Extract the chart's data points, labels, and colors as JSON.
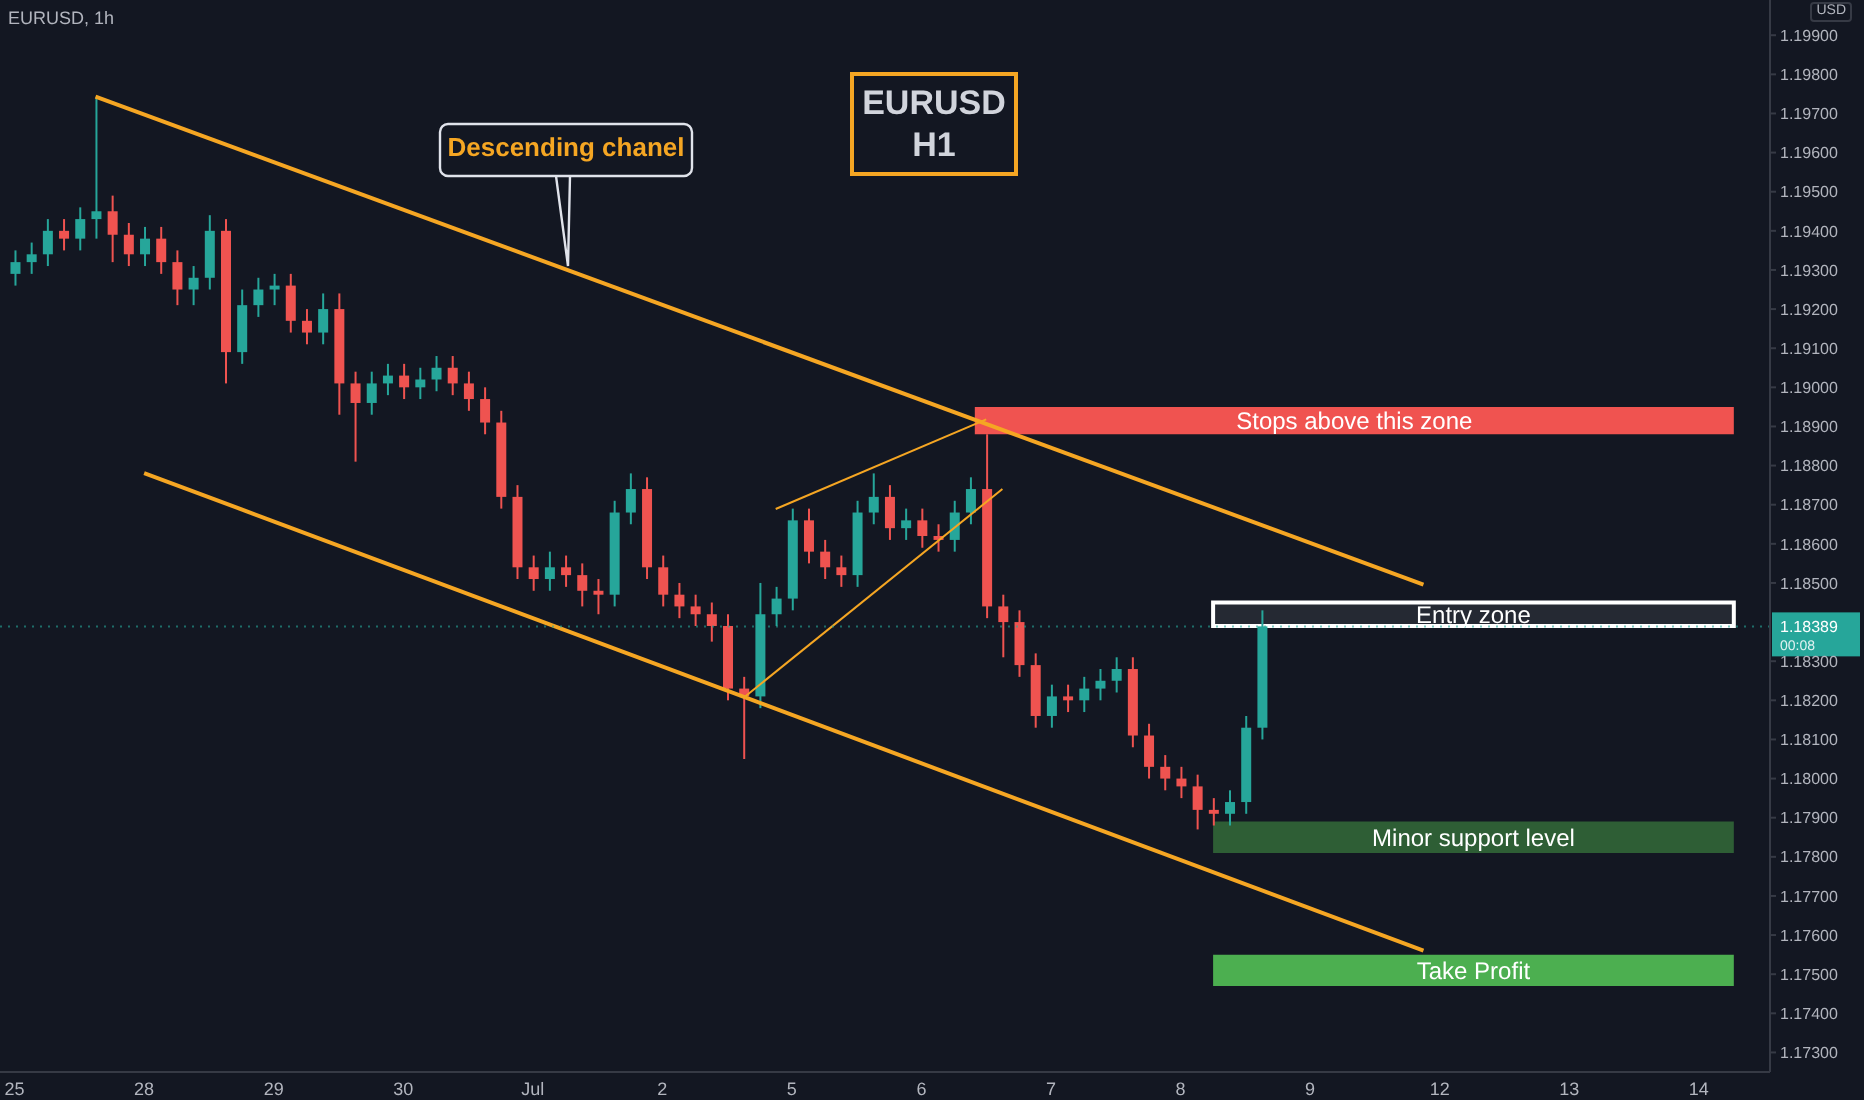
{
  "chart_data": {
    "type": "candlestick",
    "title": "EURUSD, 1h",
    "ylabel": "USD",
    "categories": [
      "25",
      null,
      null,
      null,
      null,
      null,
      null,
      null,
      "28",
      null,
      null,
      null,
      null,
      null,
      null,
      null,
      "29",
      null,
      null,
      null,
      null,
      null,
      null,
      null,
      "30",
      null,
      null,
      null,
      null,
      null,
      null,
      null,
      "Jul",
      null,
      null,
      null,
      null,
      null,
      null,
      null,
      "2",
      null,
      null,
      null,
      null,
      null,
      null,
      null,
      "5",
      null,
      null,
      null,
      null,
      null,
      null,
      null,
      "6",
      null,
      null,
      null,
      null,
      null,
      null,
      null,
      "7",
      null,
      null,
      null,
      null,
      null,
      null,
      null,
      "8",
      null,
      null,
      null,
      null,
      null,
      null,
      null,
      "9",
      null,
      null,
      null,
      null,
      null,
      null,
      null,
      "12",
      null,
      null,
      null,
      null,
      null,
      null,
      null,
      "13",
      null,
      null,
      null,
      null,
      null,
      null,
      null,
      "14",
      null,
      null,
      null,
      null
    ],
    "ylim": [
      1.1725,
      1.1999
    ],
    "yticks": [
      {
        "value": 1.199,
        "label": "1.19900"
      },
      {
        "value": 1.198,
        "label": "1.19800"
      },
      {
        "value": 1.197,
        "label": "1.19700"
      },
      {
        "value": 1.196,
        "label": "1.19600"
      },
      {
        "value": 1.195,
        "label": "1.19500"
      },
      {
        "value": 1.194,
        "label": "1.19400"
      },
      {
        "value": 1.193,
        "label": "1.19300"
      },
      {
        "value": 1.192,
        "label": "1.19200"
      },
      {
        "value": 1.191,
        "label": "1.19100"
      },
      {
        "value": 1.19,
        "label": "1.19000"
      },
      {
        "value": 1.189,
        "label": "1.18900"
      },
      {
        "value": 1.188,
        "label": "1.18800"
      },
      {
        "value": 1.187,
        "label": "1.18700"
      },
      {
        "value": 1.186,
        "label": "1.18600"
      },
      {
        "value": 1.185,
        "label": "1.18500"
      },
      {
        "value": 1.183,
        "label": "1.18300"
      },
      {
        "value": 1.182,
        "label": "1.18200"
      },
      {
        "value": 1.181,
        "label": "1.18100"
      },
      {
        "value": 1.18,
        "label": "1.18000"
      },
      {
        "value": 1.179,
        "label": "1.17900"
      },
      {
        "value": 1.178,
        "label": "1.17800"
      },
      {
        "value": 1.177,
        "label": "1.17700"
      },
      {
        "value": 1.176,
        "label": "1.17600"
      },
      {
        "value": 1.175,
        "label": "1.17500"
      },
      {
        "value": 1.174,
        "label": "1.17400"
      },
      {
        "value": 1.173,
        "label": "1.17300"
      }
    ],
    "series": [
      {
        "colors": [
          "#26a69a",
          "#26a69a",
          "#26a69a",
          "#ef5350",
          "#26a69a",
          "#26a69a",
          "#ef5350",
          "#ef5350",
          "#26a69a",
          "#ef5350",
          "#ef5350",
          "#26a69a",
          "#26a69a",
          "#ef5350",
          "#26a69a",
          "#26a69a",
          "#26a69a",
          "#ef5350",
          "#ef5350",
          "#26a69a",
          "#ef5350",
          "#ef5350",
          "#26a69a",
          "#26a69a",
          "#ef5350",
          "#26a69a",
          "#26a69a",
          "#ef5350",
          "#ef5350",
          "#ef5350",
          "#ef5350",
          "#ef5350",
          "#ef5350",
          "#26a69a",
          "#ef5350",
          "#ef5350",
          "#ef5350",
          "#26a69a",
          "#26a69a",
          "#ef5350",
          "#ef5350",
          "#ef5350",
          "#ef5350",
          "#ef5350",
          "#ef5350",
          "#ef5350",
          "#26a69a",
          "#26a69a",
          "#26a69a",
          "#ef5350",
          "#ef5350",
          "#ef5350",
          "#26a69a",
          "#26a69a",
          "#ef5350",
          "#26a69a",
          "#ef5350",
          "#ef5350",
          "#26a69a",
          "#26a69a",
          "#ef5350",
          "#ef5350",
          "#ef5350",
          "#ef5350",
          "#26a69a",
          "#ef5350",
          "#26a69a",
          "#26a69a",
          "#26a69a",
          "#ef5350",
          "#ef5350",
          "#ef5350",
          "#ef5350",
          "#ef5350",
          "#ef5350",
          "#26a69a",
          "#26a69a",
          "#26a69a",
          null,
          null,
          null,
          null,
          null,
          null,
          null,
          null,
          null,
          null,
          null,
          null,
          null,
          null,
          null,
          null,
          null,
          null,
          null,
          null,
          null,
          null,
          null,
          null,
          null,
          null,
          null,
          null,
          null,
          null,
          null
        ],
        "ohlc": [
          [
            1.1929,
            1.1935,
            1.1926,
            1.1932
          ],
          [
            1.1932,
            1.1937,
            1.1929,
            1.1934
          ],
          [
            1.1934,
            1.1943,
            1.1931,
            1.194
          ],
          [
            1.194,
            1.1943,
            1.1935,
            1.1938
          ],
          [
            1.1938,
            1.1946,
            1.1935,
            1.1943
          ],
          [
            1.1943,
            1.1974,
            1.1938,
            1.1945
          ],
          [
            1.1945,
            1.1949,
            1.1932,
            1.1939
          ],
          [
            1.1939,
            1.1942,
            1.1931,
            1.1934
          ],
          [
            1.1934,
            1.1941,
            1.1931,
            1.1938
          ],
          [
            1.1938,
            1.1941,
            1.1929,
            1.1932
          ],
          [
            1.1932,
            1.1935,
            1.1921,
            1.1925
          ],
          [
            1.1925,
            1.1931,
            1.1921,
            1.1928
          ],
          [
            1.1928,
            1.1944,
            1.1925,
            1.194
          ],
          [
            1.194,
            1.1943,
            1.1901,
            1.1909
          ],
          [
            1.1909,
            1.1925,
            1.1906,
            1.1921
          ],
          [
            1.1921,
            1.1928,
            1.1918,
            1.1925
          ],
          [
            1.1925,
            1.1929,
            1.1921,
            1.1926
          ],
          [
            1.1926,
            1.1929,
            1.1914,
            1.1917
          ],
          [
            1.1917,
            1.192,
            1.1911,
            1.1914
          ],
          [
            1.1914,
            1.1924,
            1.1911,
            1.192
          ],
          [
            1.192,
            1.1924,
            1.1893,
            1.1901
          ],
          [
            1.1901,
            1.1904,
            1.1881,
            1.1896
          ],
          [
            1.1896,
            1.1904,
            1.1893,
            1.1901
          ],
          [
            1.1901,
            1.1906,
            1.1898,
            1.1903
          ],
          [
            1.1903,
            1.1906,
            1.1897,
            1.19
          ],
          [
            1.19,
            1.1905,
            1.1897,
            1.1902
          ],
          [
            1.1902,
            1.1908,
            1.1899,
            1.1905
          ],
          [
            1.1905,
            1.1908,
            1.1898,
            1.1901
          ],
          [
            1.1901,
            1.1904,
            1.1894,
            1.1897
          ],
          [
            1.1897,
            1.19,
            1.1888,
            1.1891
          ],
          [
            1.1891,
            1.1894,
            1.1869,
            1.1872
          ],
          [
            1.1872,
            1.1875,
            1.1851,
            1.1854
          ],
          [
            1.1854,
            1.1857,
            1.1848,
            1.1851
          ],
          [
            1.1851,
            1.1858,
            1.1848,
            1.1854
          ],
          [
            1.1854,
            1.1857,
            1.1849,
            1.1852
          ],
          [
            1.1852,
            1.1855,
            1.1844,
            1.1848
          ],
          [
            1.1848,
            1.1851,
            1.1842,
            1.1847
          ],
          [
            1.1847,
            1.1871,
            1.1844,
            1.1868
          ],
          [
            1.1868,
            1.1878,
            1.1865,
            1.1874
          ],
          [
            1.1874,
            1.1877,
            1.1851,
            1.1854
          ],
          [
            1.1854,
            1.1857,
            1.1844,
            1.1847
          ],
          [
            1.1847,
            1.185,
            1.1841,
            1.1844
          ],
          [
            1.1844,
            1.1847,
            1.1839,
            1.1842
          ],
          [
            1.1842,
            1.1845,
            1.1835,
            1.1839
          ],
          [
            1.1839,
            1.1842,
            1.182,
            1.1823
          ],
          [
            1.1823,
            1.1826,
            1.1805,
            1.1821
          ],
          [
            1.1821,
            1.185,
            1.1818,
            1.1842
          ],
          [
            1.1842,
            1.1849,
            1.1839,
            1.1846
          ],
          [
            1.1846,
            1.1869,
            1.1843,
            1.1866
          ],
          [
            1.1866,
            1.1869,
            1.1855,
            1.1858
          ],
          [
            1.1858,
            1.1861,
            1.1851,
            1.1854
          ],
          [
            1.1854,
            1.1857,
            1.1849,
            1.1852
          ],
          [
            1.1852,
            1.1871,
            1.1849,
            1.1868
          ],
          [
            1.1868,
            1.1878,
            1.1865,
            1.1872
          ],
          [
            1.1872,
            1.1875,
            1.1861,
            1.1864
          ],
          [
            1.1864,
            1.1869,
            1.1861,
            1.1866
          ],
          [
            1.1866,
            1.1869,
            1.1859,
            1.1862
          ],
          [
            1.1862,
            1.1865,
            1.1858,
            1.1861
          ],
          [
            1.1861,
            1.1871,
            1.1858,
            1.1868
          ],
          [
            1.1868,
            1.1877,
            1.1865,
            1.1874
          ],
          [
            1.1874,
            1.1888,
            1.1841,
            1.1844
          ],
          [
            1.1844,
            1.1847,
            1.1831,
            1.184
          ],
          [
            1.184,
            1.1843,
            1.1826,
            1.1829
          ],
          [
            1.1829,
            1.1832,
            1.1813,
            1.1816
          ],
          [
            1.1816,
            1.1824,
            1.1813,
            1.1821
          ],
          [
            1.1821,
            1.1824,
            1.1817,
            1.182
          ],
          [
            1.182,
            1.1826,
            1.1817,
            1.1823
          ],
          [
            1.1823,
            1.1828,
            1.182,
            1.1825
          ],
          [
            1.1825,
            1.1831,
            1.1822,
            1.1828
          ],
          [
            1.1828,
            1.1831,
            1.1808,
            1.1811
          ],
          [
            1.1811,
            1.1814,
            1.18,
            1.1803
          ],
          [
            1.1803,
            1.1806,
            1.1797,
            1.18
          ],
          [
            1.18,
            1.1803,
            1.1795,
            1.1798
          ],
          [
            1.1798,
            1.1801,
            1.1787,
            1.1792
          ],
          [
            1.1792,
            1.1795,
            1.1788,
            1.1791
          ],
          [
            1.1791,
            1.1797,
            1.1788,
            1.1794
          ],
          [
            1.1794,
            1.1816,
            1.1791,
            1.1813
          ],
          [
            1.1813,
            1.1843,
            1.181,
            1.18389
          ],
          null,
          null,
          null,
          null,
          null,
          null,
          null,
          null,
          null,
          null,
          null,
          null,
          null,
          null,
          null,
          null,
          null,
          null,
          null,
          null,
          null,
          null,
          null,
          null,
          null,
          null,
          null,
          null,
          null,
          null,
          null
        ]
      },
      {
        "type": "line",
        "color": "#f5a623",
        "values": [
          null,
          null,
          null,
          null,
          null,
          1.19743,
          null,
          null,
          null,
          null,
          null,
          null,
          null,
          null,
          null,
          null,
          null,
          null,
          null,
          null,
          null,
          null,
          null,
          null,
          null,
          null,
          null,
          null,
          null,
          null,
          null,
          null,
          null,
          null,
          null,
          null,
          null,
          null,
          null,
          null,
          null,
          null,
          null,
          null,
          null,
          null,
          null,
          null,
          null,
          null,
          null,
          null,
          null,
          null,
          null,
          null,
          null,
          null,
          null,
          null,
          null,
          null,
          null,
          null,
          null,
          null,
          null,
          null,
          null,
          null,
          null,
          null,
          null,
          null,
          null,
          null,
          null,
          null,
          null,
          null,
          null,
          null,
          null,
          null,
          null,
          null,
          null,
          1.18496,
          null,
          null,
          null,
          null,
          null,
          null,
          null,
          null,
          null,
          null,
          null,
          null,
          null,
          null,
          null,
          null,
          null,
          null,
          null,
          null,
          null
        ]
      },
      {
        "type": "line",
        "color": "#f5a623",
        "values": [
          null,
          null,
          null,
          null,
          null,
          null,
          null,
          null,
          1.18781,
          null,
          null,
          null,
          null,
          null,
          null,
          null,
          null,
          null,
          null,
          null,
          null,
          null,
          null,
          null,
          null,
          null,
          null,
          null,
          null,
          null,
          null,
          null,
          null,
          null,
          null,
          null,
          null,
          null,
          null,
          null,
          null,
          null,
          null,
          null,
          null,
          null,
          null,
          null,
          null,
          null,
          null,
          null,
          null,
          null,
          null,
          null,
          null,
          null,
          null,
          null,
          null,
          null,
          null,
          null,
          null,
          null,
          null,
          null,
          null,
          null,
          null,
          null,
          null,
          null,
          null,
          null,
          null,
          null,
          null,
          null,
          null,
          null,
          null,
          null,
          null,
          null,
          null,
          1.1756,
          null,
          null,
          null,
          null,
          null,
          null,
          null,
          null,
          null,
          null,
          null,
          null,
          null,
          null,
          null,
          null,
          null,
          null,
          null,
          null,
          null
        ]
      },
      {
        "type": "line",
        "color": "#f5a623",
        "values": [
          null,
          null,
          null,
          null,
          null,
          null,
          null,
          null,
          null,
          null,
          null,
          null,
          null,
          null,
          null,
          null,
          null,
          null,
          null,
          null,
          null,
          null,
          null,
          null,
          null,
          null,
          null,
          null,
          null,
          null,
          null,
          null,
          null,
          null,
          null,
          null,
          null,
          null,
          null,
          null,
          null,
          null,
          null,
          null,
          null,
          null,
          null,
          1.18689,
          null,
          null,
          null,
          null,
          null,
          null,
          null,
          null,
          null,
          null,
          null,
          null,
          1.18918,
          null,
          null,
          null,
          null,
          null,
          null,
          null,
          null,
          null,
          null,
          null,
          null,
          null,
          null,
          null,
          null,
          null,
          null,
          null,
          null,
          null,
          null,
          null,
          null,
          null,
          null,
          null,
          null,
          null,
          null,
          null,
          null,
          null,
          null,
          null,
          null,
          null,
          null,
          null,
          null,
          null,
          null,
          null,
          null,
          null,
          null,
          null,
          null
        ]
      },
      {
        "type": "line",
        "color": "#f5a623",
        "values": [
          null,
          null,
          null,
          null,
          null,
          null,
          null,
          null,
          null,
          null,
          null,
          null,
          null,
          null,
          null,
          null,
          null,
          null,
          null,
          null,
          null,
          null,
          null,
          null,
          null,
          null,
          null,
          null,
          null,
          null,
          null,
          null,
          null,
          null,
          null,
          null,
          null,
          null,
          null,
          null,
          null,
          null,
          null,
          null,
          null,
          1.18206,
          null,
          null,
          null,
          null,
          null,
          null,
          null,
          null,
          null,
          null,
          null,
          null,
          null,
          null,
          null,
          1.1874,
          null,
          null,
          null,
          null,
          null,
          null,
          null,
          null,
          null,
          null,
          null,
          null,
          null,
          null,
          null,
          null,
          null,
          null,
          null,
          null,
          null,
          null,
          null,
          null,
          null,
          null,
          null,
          null,
          null,
          null,
          null,
          null,
          null,
          null,
          null,
          null,
          null,
          null,
          null,
          null,
          null,
          null,
          null,
          null,
          null,
          null,
          null
        ]
      }
    ],
    "bands": [
      {
        "axis": "y",
        "from": 1.1888,
        "to": 1.1895,
        "label": "Stops above this zone",
        "color": "#f05350"
      },
      {
        "axis": "y",
        "from": 1.1839,
        "to": 1.1845,
        "label": "Entry zone",
        "color": "#ffffff"
      },
      {
        "axis": "y",
        "from": 1.1781,
        "to": 1.1789,
        "label": "Minor support level",
        "color": "#2e5e35"
      },
      {
        "axis": "y",
        "from": 1.1747,
        "to": 1.1755,
        "label": "Take Profit",
        "color": "#4caf50"
      }
    ],
    "ref_lines": [
      {
        "axis": "y",
        "value": 1.18389,
        "label": "1.18389",
        "color": "#26a69a",
        "line_style": "dotted"
      }
    ],
    "annotations": [
      "Descending chanel",
      "EURUSD H1",
      "00:08"
    ]
  }
}
